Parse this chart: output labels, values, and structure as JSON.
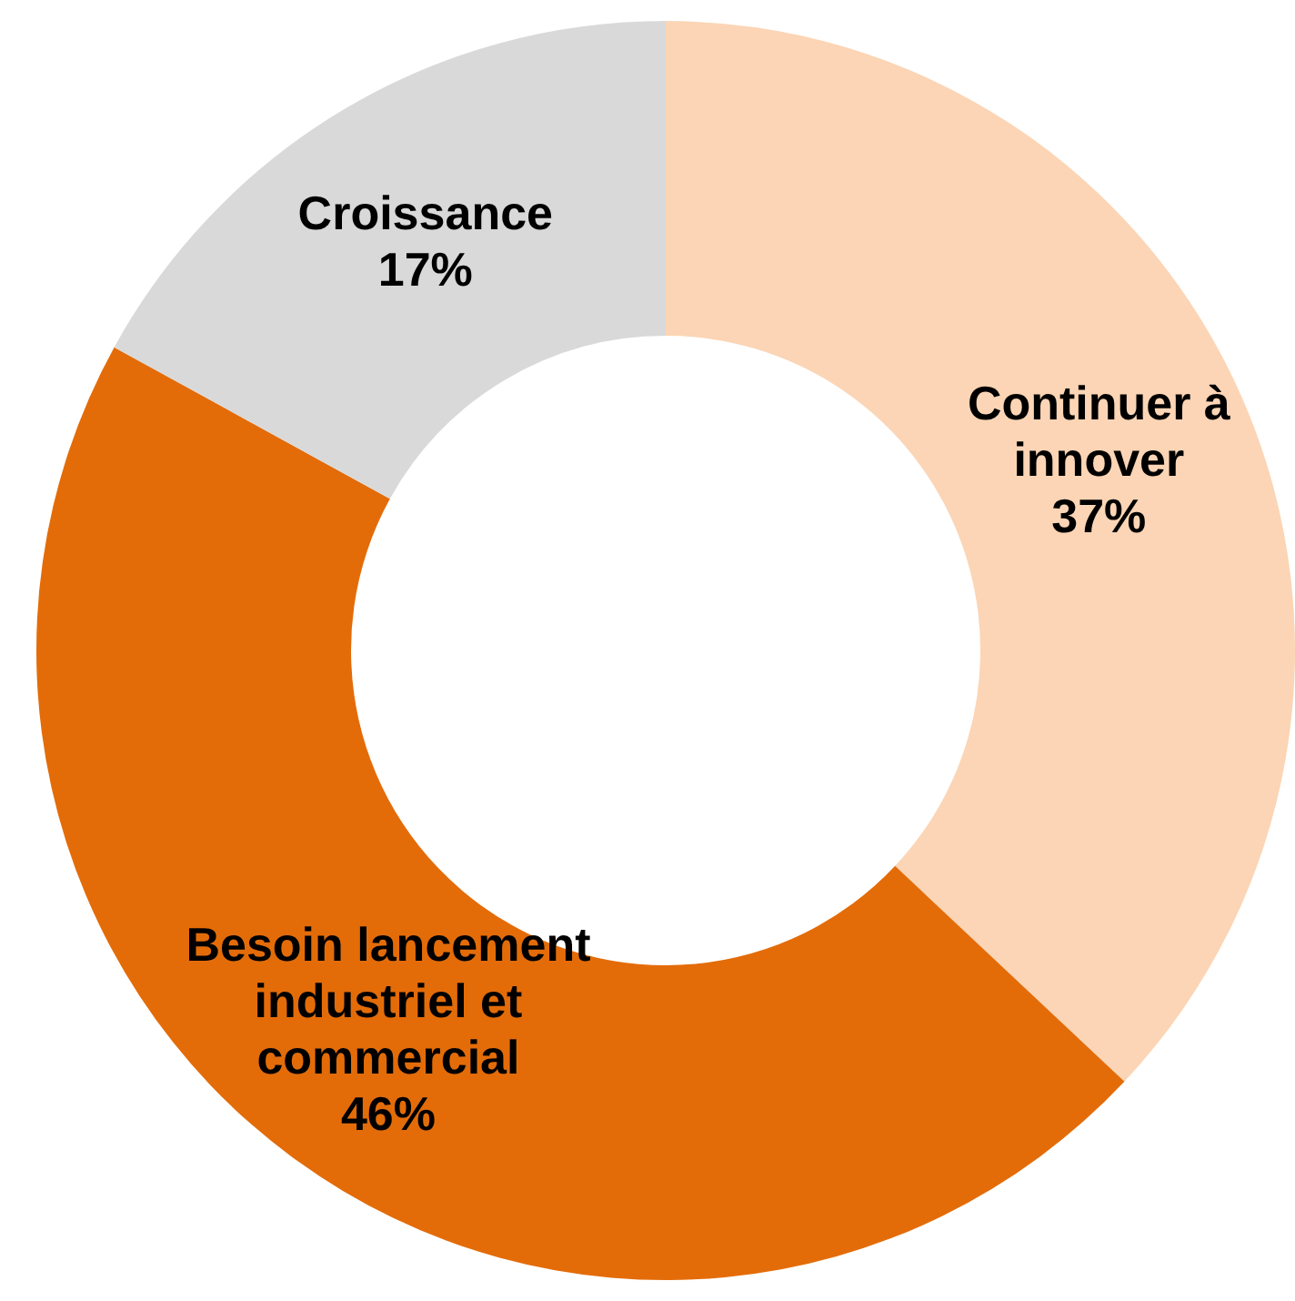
{
  "chart_data": {
    "type": "donut",
    "categories": [
      "Continuer à innover",
      "Besoin lancement industriel et commercial",
      "Croissance"
    ],
    "values": [
      37,
      46,
      17
    ],
    "colors": [
      "#fbd5b5",
      "#e36c09",
      "#d9d9d9"
    ],
    "value_labels": [
      "37%",
      "46%",
      "17%"
    ],
    "legend": false
  }
}
